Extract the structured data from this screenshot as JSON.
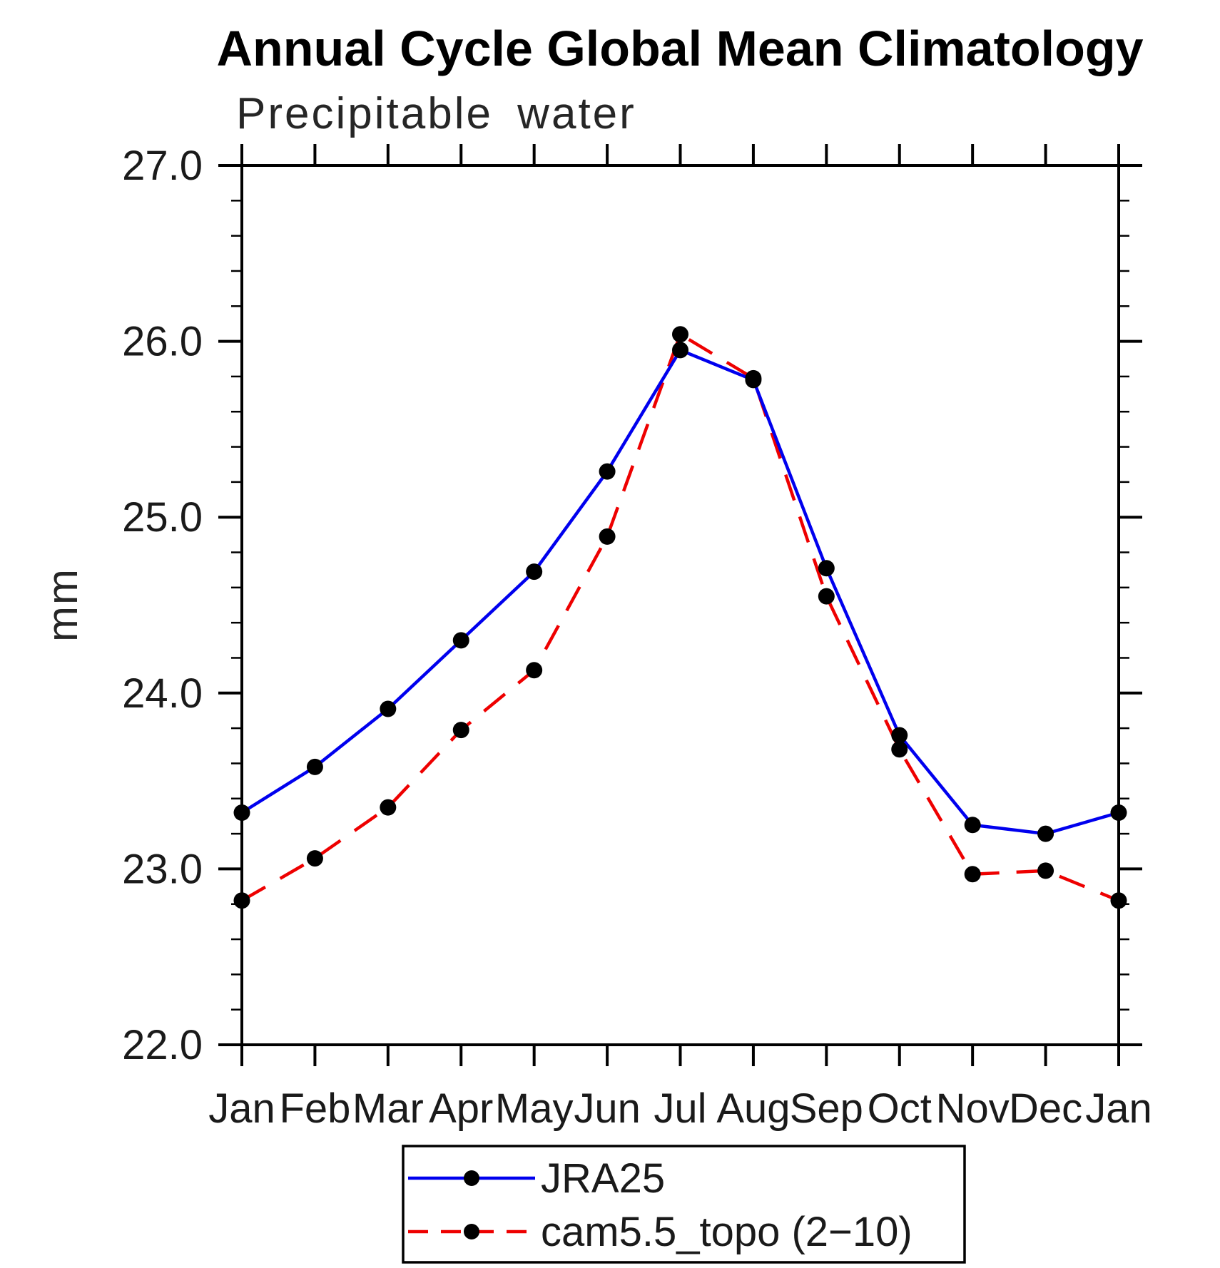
{
  "title": "Annual Cycle Global Mean Climatology",
  "subtitle": "Precipitable water",
  "ylabel": "mm",
  "chart_data": {
    "type": "line",
    "x_categories": [
      "Jan",
      "Feb",
      "Mar",
      "Apr",
      "May",
      "Jun",
      "Jul",
      "Aug",
      "Sep",
      "Oct",
      "Nov",
      "Dec",
      "Jan"
    ],
    "xlabel": "",
    "ylabel": "mm",
    "ylim": [
      22.0,
      27.0
    ],
    "ytick_major_interval": 1.0,
    "ytick_minor_interval": 0.2,
    "ytick_labels": [
      "22.0",
      "23.0",
      "24.0",
      "25.0",
      "26.0",
      "27.0"
    ],
    "grid": false,
    "legend_position": "bottom",
    "marker": "filled-circle",
    "marker_color": "#000000",
    "series": [
      {
        "name": "JRA25",
        "color": "#0000ee",
        "line_style": "solid",
        "values": [
          23.32,
          23.58,
          23.91,
          24.3,
          24.69,
          25.26,
          25.95,
          25.78,
          24.71,
          23.76,
          23.25,
          23.2,
          23.32
        ]
      },
      {
        "name": "cam5.5_topo (2−10)",
        "color": "#ee0000",
        "line_style": "dashed",
        "values": [
          22.82,
          23.06,
          23.35,
          23.79,
          24.13,
          24.89,
          26.04,
          25.79,
          24.55,
          23.68,
          22.97,
          22.99,
          22.82
        ]
      }
    ]
  },
  "legend": {
    "items": [
      {
        "label": "JRA25"
      },
      {
        "label": "cam5.5_topo (2−10)"
      }
    ]
  }
}
